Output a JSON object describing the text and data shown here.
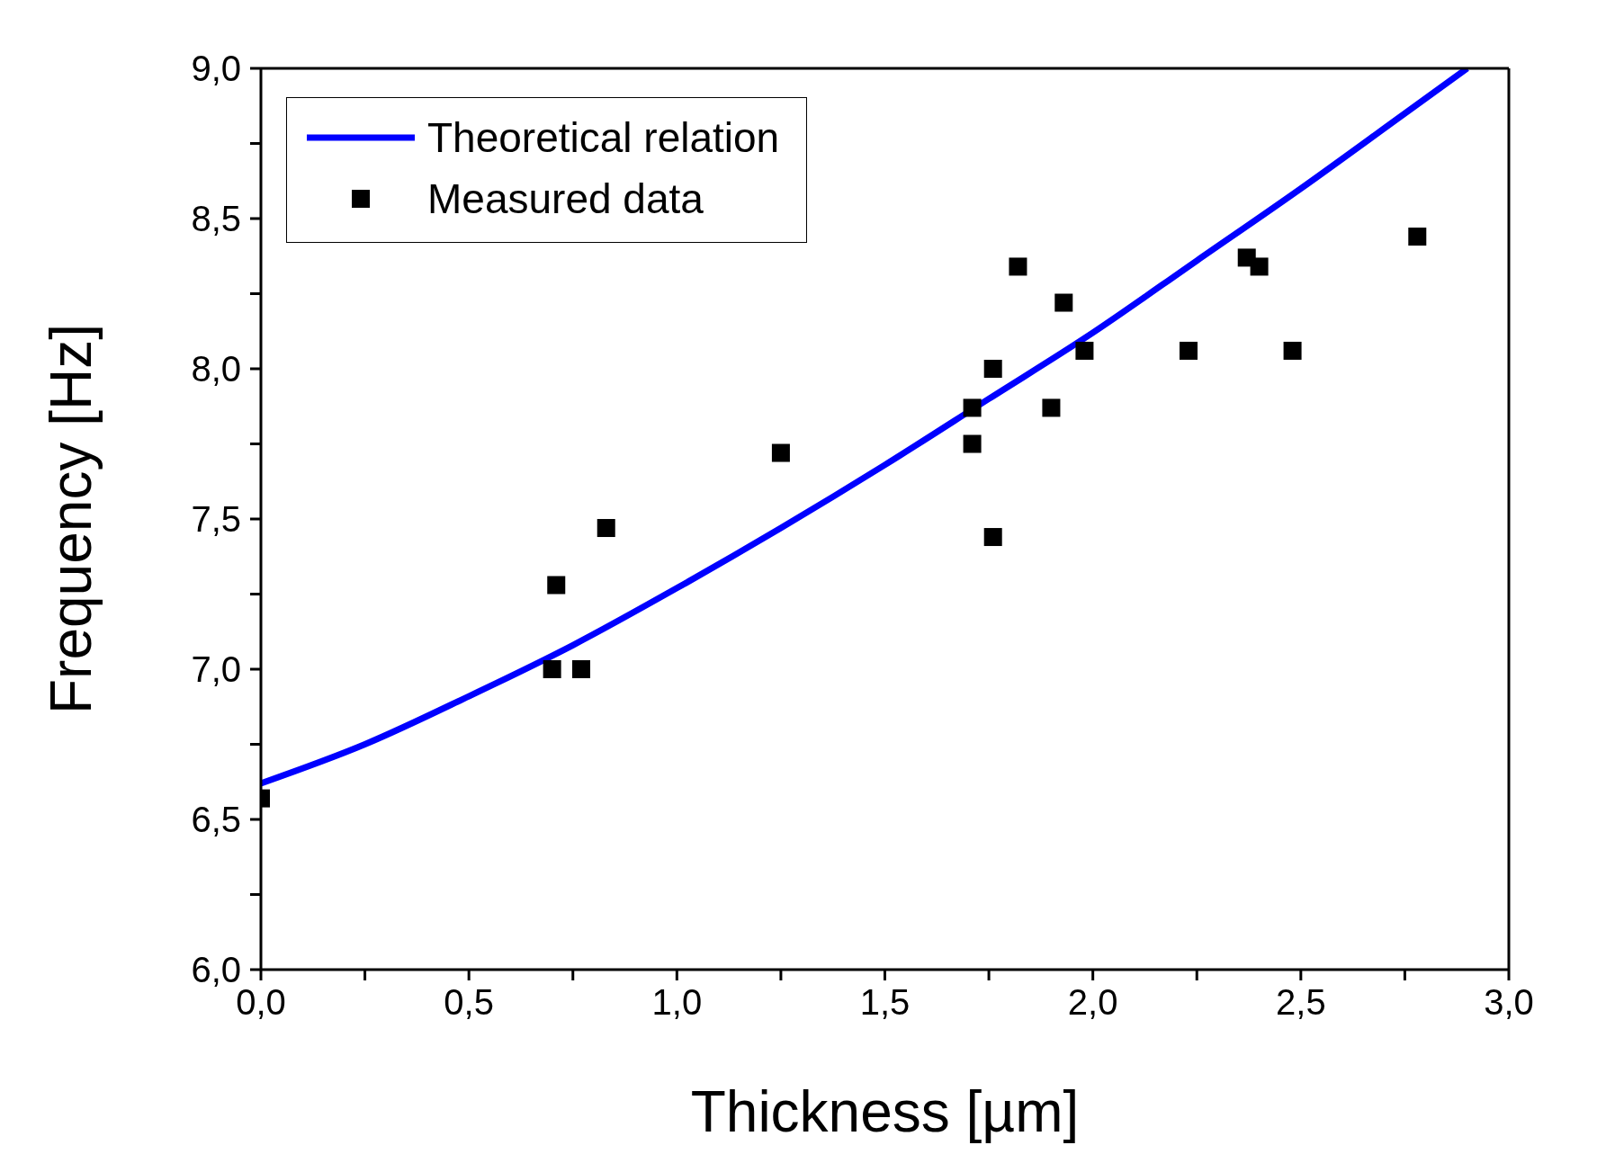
{
  "chart_data": {
    "type": "scatter",
    "xlabel": "Thickness [µm]",
    "ylabel": "Frequency [Hz]",
    "xlim": [
      0,
      3
    ],
    "ylim": [
      6,
      9
    ],
    "xticks": [
      {
        "value": 0,
        "label": "0,0"
      },
      {
        "value": 0.25,
        "label": null
      },
      {
        "value": 0.5,
        "label": "0,5"
      },
      {
        "value": 0.75,
        "label": null
      },
      {
        "value": 1,
        "label": "1,0"
      },
      {
        "value": 1.25,
        "label": null
      },
      {
        "value": 1.5,
        "label": "1,5"
      },
      {
        "value": 1.75,
        "label": null
      },
      {
        "value": 2,
        "label": "2,0"
      },
      {
        "value": 2.25,
        "label": null
      },
      {
        "value": 2.5,
        "label": "2,5"
      },
      {
        "value": 2.75,
        "label": null
      },
      {
        "value": 3,
        "label": "3,0"
      }
    ],
    "yticks": [
      {
        "value": 6,
        "label": "6,0"
      },
      {
        "value": 6.25,
        "label": null
      },
      {
        "value": 6.5,
        "label": "6,5"
      },
      {
        "value": 6.75,
        "label": null
      },
      {
        "value": 7,
        "label": "7,0"
      },
      {
        "value": 7.25,
        "label": null
      },
      {
        "value": 7.5,
        "label": "7,5"
      },
      {
        "value": 7.75,
        "label": null
      },
      {
        "value": 8,
        "label": "8,0"
      },
      {
        "value": 8.25,
        "label": null
      },
      {
        "value": 8.5,
        "label": "8,5"
      },
      {
        "value": 8.75,
        "label": null
      },
      {
        "value": 9,
        "label": "9,0"
      }
    ],
    "legend": "top left",
    "series": [
      {
        "name": "Theoretical relation",
        "type": "line",
        "color": "#0000ff",
        "marker": "none",
        "line_style": "solid",
        "x": [
          0,
          0.25,
          0.5,
          0.75,
          1,
          1.25,
          1.5,
          1.75,
          2,
          2.25,
          2.5,
          2.75,
          2.9
        ],
        "values": [
          6.62,
          6.75,
          6.91,
          7.08,
          7.27,
          7.47,
          7.68,
          7.9,
          8.12,
          8.36,
          8.6,
          8.85,
          9.0
        ]
      },
      {
        "name": "Measured data",
        "type": "scatter",
        "color": "#000000",
        "marker": "square",
        "x": [
          0,
          0.7,
          0.71,
          0.77,
          0.83,
          1.25,
          1.71,
          1.71,
          1.76,
          1.76,
          1.82,
          1.9,
          1.93,
          1.98,
          2.23,
          2.37,
          2.4,
          2.48,
          2.78
        ],
        "values": [
          6.57,
          7.0,
          7.28,
          7.0,
          7.47,
          7.72,
          7.75,
          7.87,
          8.0,
          7.44,
          8.34,
          7.87,
          8.22,
          8.06,
          8.06,
          8.37,
          8.34,
          8.06,
          8.44
        ]
      }
    ]
  }
}
